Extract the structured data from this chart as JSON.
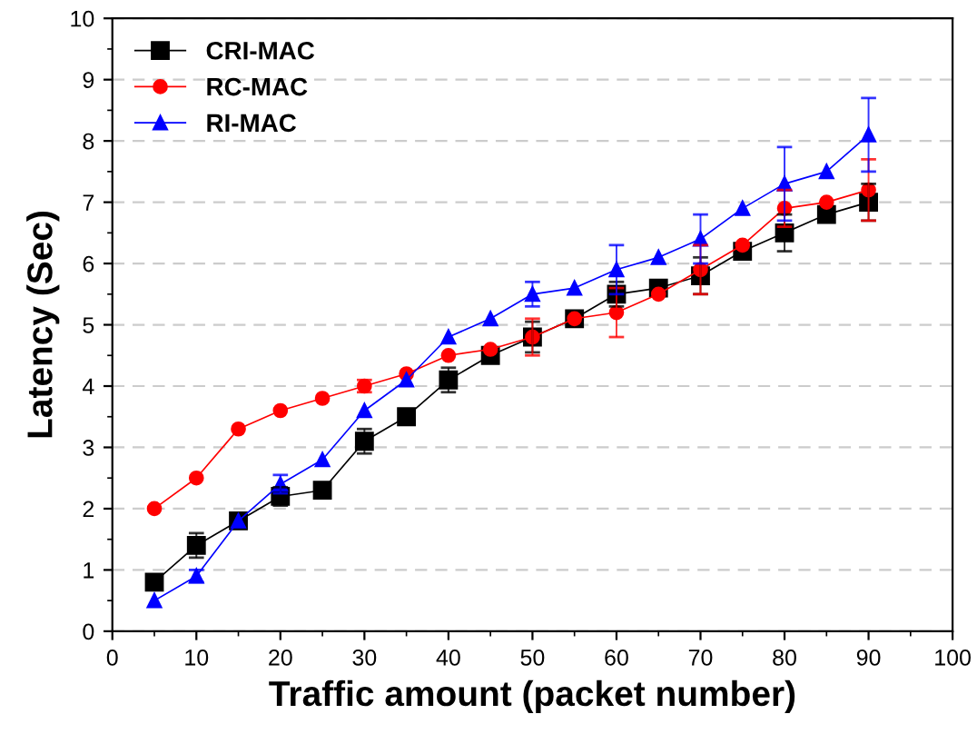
{
  "chart_data": {
    "type": "line",
    "xlabel": "Traffic amount (packet number)",
    "ylabel": "Latency (Sec)",
    "x": [
      5,
      10,
      15,
      20,
      25,
      30,
      35,
      40,
      45,
      50,
      55,
      60,
      65,
      70,
      75,
      80,
      85,
      90
    ],
    "xlim": [
      0,
      100
    ],
    "xticks": [
      0,
      10,
      20,
      30,
      40,
      50,
      60,
      70,
      80,
      90,
      100
    ],
    "ylim": [
      0,
      10
    ],
    "yticks": [
      0,
      1,
      2,
      3,
      4,
      5,
      6,
      7,
      8,
      9,
      10
    ],
    "grid": "y",
    "legend": "top left",
    "line_style": "solid",
    "series": [
      {
        "name": "CRI-MAC",
        "color": "#000000",
        "marker": "square",
        "values": [
          0.8,
          1.4,
          1.8,
          2.2,
          2.3,
          3.1,
          3.5,
          4.1,
          4.5,
          4.8,
          5.1,
          5.5,
          5.6,
          5.8,
          6.2,
          6.5,
          6.8,
          7.0
        ],
        "errors": [
          null,
          0.2,
          null,
          0.15,
          null,
          0.2,
          null,
          0.2,
          null,
          0.25,
          null,
          0.2,
          null,
          0.3,
          null,
          0.3,
          null,
          0.3
        ]
      },
      {
        "name": "RC-MAC",
        "color": "#ff0000",
        "marker": "circle",
        "values": [
          2.0,
          2.5,
          3.3,
          3.6,
          3.8,
          4.0,
          4.2,
          4.5,
          4.6,
          4.8,
          5.1,
          5.2,
          5.5,
          5.9,
          6.3,
          6.9,
          7.0,
          7.2
        ],
        "errors": [
          null,
          null,
          null,
          null,
          null,
          0.1,
          null,
          null,
          null,
          0.3,
          null,
          0.4,
          null,
          0.4,
          null,
          0.3,
          null,
          0.5
        ]
      },
      {
        "name": "RI-MAC",
        "color": "#0000ff",
        "marker": "triangle",
        "values": [
          0.5,
          0.9,
          1.8,
          2.4,
          2.8,
          3.6,
          4.1,
          4.8,
          5.1,
          5.5,
          5.6,
          5.9,
          6.1,
          6.4,
          6.9,
          7.3,
          7.5,
          8.1
        ],
        "errors": [
          null,
          0.1,
          null,
          0.15,
          null,
          null,
          null,
          null,
          null,
          0.2,
          null,
          0.4,
          null,
          0.4,
          null,
          0.6,
          null,
          0.6
        ]
      }
    ]
  }
}
